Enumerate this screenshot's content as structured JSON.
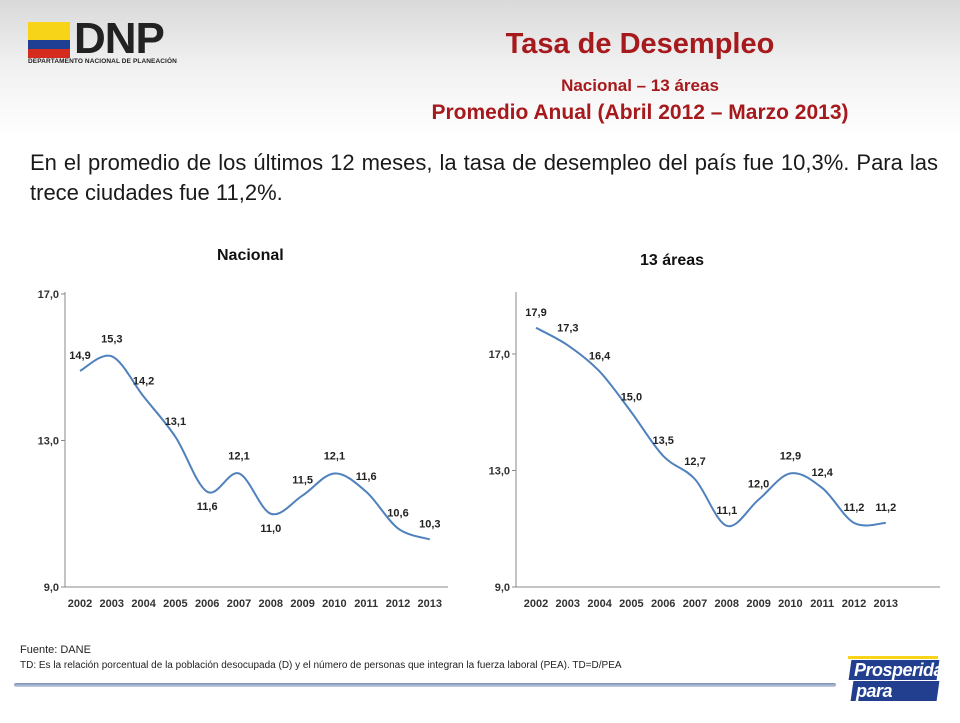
{
  "header": {
    "logo_text": "DNP",
    "logo_subtitle": "DEPARTAMENTO NACIONAL DE PLANEACIÓN",
    "title": "Tasa de Desempleo",
    "subtitle": "Nacional – 13 áreas",
    "subtitle2": "Promedio Anual (Abril 2012 – Marzo 2013)"
  },
  "summary": "En el promedio de los últimos 12 meses, la tasa de desempleo del país fue 10,3%. Para las trece ciudades fue 11,2%.",
  "colors": {
    "line": "#4f81bd",
    "title": "#a6191c",
    "axis": "#888888"
  },
  "chart_data": [
    {
      "type": "line",
      "title": "Nacional",
      "categories": [
        "2002",
        "2003",
        "2004",
        "2005",
        "2006",
        "2007",
        "2008",
        "2009",
        "2010",
        "2011",
        "2012",
        "2013"
      ],
      "values": [
        14.9,
        15.3,
        14.2,
        13.1,
        11.6,
        12.1,
        11.0,
        11.5,
        12.1,
        11.6,
        10.6,
        10.3
      ],
      "labels": [
        "14,9",
        "15,3",
        "14,2",
        "13,1",
        "11,6",
        "12,1",
        "11,0",
        "11,5",
        "12,1",
        "11,6",
        "10,6",
        "10,3"
      ],
      "yticks": [
        "9,0",
        "13,0",
        "17,0"
      ],
      "ylim": [
        9,
        17
      ],
      "grid": false
    },
    {
      "type": "line",
      "title": "13 áreas",
      "categories": [
        "2002",
        "2003",
        "2004",
        "2005",
        "2006",
        "2007",
        "2008",
        "2009",
        "2010",
        "2011",
        "2012",
        "2013"
      ],
      "values": [
        17.9,
        17.3,
        16.4,
        15.0,
        13.5,
        12.7,
        11.1,
        12.0,
        12.9,
        12.4,
        11.2,
        11.2
      ],
      "labels": [
        "17,9",
        "17,3",
        "16,4",
        "15,0",
        "13,5",
        "12,7",
        "11,1",
        "12,0",
        "12,9",
        "12,4",
        "11,2",
        "11,2"
      ],
      "yticks": [
        "9,0",
        "13,0",
        "17,0"
      ],
      "ylim": [
        9,
        17
      ],
      "grid": false
    }
  ],
  "footer": {
    "source": "Fuente: DANE",
    "note": "TD:  Es la relación porcentual de la población desocupada (D) y el número de personas que integran la fuerza laboral (PEA). TD=D/PEA"
  },
  "badge": {
    "line1": "Prosperidad",
    "line2": "para todos"
  }
}
